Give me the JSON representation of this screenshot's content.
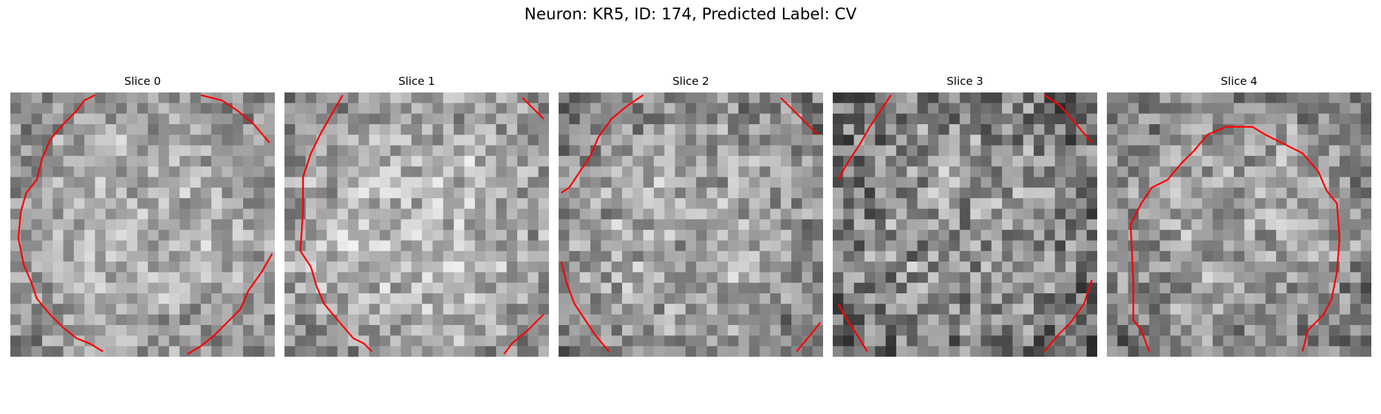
{
  "figure": {
    "title": "Neuron: KR5, ID: 174, Predicted Label: CV"
  },
  "panels": [
    {
      "title": "Slice 0",
      "seed": 11,
      "brightCenter": 0.7,
      "contrast": 0.18
    },
    {
      "title": "Slice 1",
      "seed": 23,
      "brightCenter": 0.72,
      "contrast": 0.2
    },
    {
      "title": "Slice 2",
      "seed": 37,
      "brightCenter": 0.66,
      "contrast": 0.2
    },
    {
      "title": "Slice 3",
      "seed": 53,
      "brightCenter": 0.58,
      "contrast": 0.25
    },
    {
      "title": "Slice 4",
      "seed": 71,
      "brightCenter": 0.64,
      "contrast": 0.2
    }
  ],
  "colors": {
    "contour": "#ff0000",
    "background": "#ffffff"
  }
}
